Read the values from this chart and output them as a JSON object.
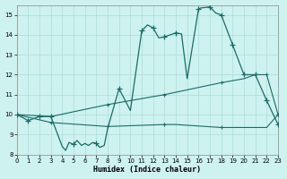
{
  "xlabel": "Humidex (Indice chaleur)",
  "xlim": [
    0,
    23
  ],
  "ylim": [
    8,
    15.5
  ],
  "yticks": [
    8,
    9,
    10,
    11,
    12,
    13,
    14,
    15
  ],
  "xticks": [
    0,
    1,
    2,
    3,
    4,
    5,
    6,
    7,
    8,
    9,
    10,
    11,
    12,
    13,
    14,
    15,
    16,
    17,
    18,
    19,
    20,
    21,
    22,
    23
  ],
  "bg_color": "#cef2f0",
  "line_color": "#1a6b66",
  "grid_color": "#aaddd8",
  "curve1_x": [
    0,
    1,
    2,
    3,
    4,
    4.3,
    4.6,
    5,
    5.3,
    5.7,
    6,
    6.3,
    6.7,
    7,
    7.3,
    7.7,
    8,
    9,
    10,
    11,
    11.5,
    12,
    12.5,
    13,
    14,
    14.5,
    15,
    16,
    16.2,
    17,
    17.5,
    18,
    19,
    20,
    21,
    22,
    23
  ],
  "curve1_y": [
    10.0,
    9.7,
    9.9,
    9.9,
    8.4,
    8.2,
    8.6,
    8.5,
    8.7,
    8.45,
    8.55,
    8.45,
    8.6,
    8.55,
    8.35,
    8.45,
    9.3,
    11.3,
    10.2,
    14.2,
    14.5,
    14.35,
    13.85,
    13.9,
    14.1,
    14.05,
    11.8,
    15.3,
    15.35,
    15.4,
    15.1,
    15.0,
    13.5,
    12.0,
    12.0,
    10.7,
    9.5
  ],
  "curve1_markers_x": [
    0,
    1,
    2,
    3,
    5,
    7,
    9,
    11,
    12,
    13,
    14,
    16,
    17,
    18,
    19,
    20,
    21,
    22,
    23
  ],
  "curve1_markers_y": [
    10.0,
    9.7,
    9.9,
    9.9,
    8.5,
    8.55,
    11.3,
    14.2,
    14.35,
    13.9,
    14.1,
    15.3,
    15.4,
    15.0,
    13.5,
    12.0,
    12.0,
    10.7,
    9.5
  ],
  "curve2_x": [
    0,
    3,
    8,
    13,
    18,
    20,
    21,
    22,
    23
  ],
  "curve2_y": [
    10.0,
    9.9,
    10.5,
    11.0,
    11.6,
    11.8,
    12.0,
    12.0,
    10.0
  ],
  "curve2_markers_x": [
    0,
    3,
    8,
    13,
    18,
    21,
    22,
    23
  ],
  "curve2_markers_y": [
    10.0,
    9.9,
    10.5,
    11.0,
    11.6,
    12.0,
    12.0,
    10.0
  ],
  "curve3_x": [
    0,
    3,
    8,
    13,
    14,
    18,
    19,
    20,
    21,
    22,
    23
  ],
  "curve3_y": [
    10.0,
    9.6,
    9.4,
    9.5,
    9.5,
    9.35,
    9.35,
    9.35,
    9.35,
    9.35,
    10.0
  ],
  "curve3_markers_x": [
    0,
    3,
    8,
    13,
    18,
    23
  ],
  "curve3_markers_y": [
    10.0,
    9.6,
    9.4,
    9.5,
    9.35,
    10.0
  ]
}
